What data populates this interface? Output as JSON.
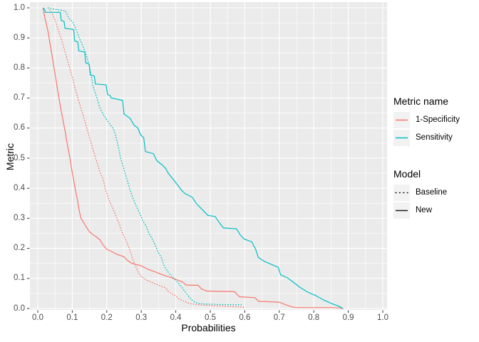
{
  "figure": {
    "background": "#FFFFFF",
    "panel_background": "#EBEBEB",
    "grid_color": "#FFFFFF",
    "tick_mark_color": "#333333",
    "tick_label_color": "#4D4D4D",
    "axis_title_color": "#000000"
  },
  "legend": {
    "color_group": {
      "title": "Metric name",
      "items": [
        {
          "label": "1-Specificity",
          "color": "#F8766D",
          "linetype": "solid"
        },
        {
          "label": "Sensitivity",
          "color": "#00BFC4",
          "linetype": "solid"
        }
      ]
    },
    "linetype_group": {
      "title": "Model",
      "items": [
        {
          "label": "Baseline",
          "color": "#1A1A1A",
          "linetype": "dotted"
        },
        {
          "label": "New",
          "color": "#1A1A1A",
          "linetype": "solid"
        }
      ]
    }
  },
  "chart_data": {
    "type": "line",
    "title": "",
    "xlabel": "Probabilities",
    "ylabel": "Metric",
    "xlim": [
      0,
      1
    ],
    "ylim": [
      0,
      1
    ],
    "grid": "major+minor",
    "legend_position": "right",
    "x_ticks": [
      "0.0",
      "0.1",
      "0.2",
      "0.3",
      "0.4",
      "0.5",
      "0.6",
      "0.7",
      "0.8",
      "0.9",
      "1.0"
    ],
    "y_ticks": [
      "0.0",
      "0.1",
      "0.2",
      "0.3",
      "0.4",
      "0.5",
      "0.6",
      "0.7",
      "0.8",
      "0.9",
      "1.0"
    ],
    "series": [
      {
        "name": "1-Specificity (New)",
        "metric": "1-Specificity",
        "model": "New",
        "color": "#F8766D",
        "linetype": "solid",
        "points": [
          [
            0.015,
            1.0
          ],
          [
            0.02,
            0.97
          ],
          [
            0.025,
            0.945
          ],
          [
            0.03,
            0.92
          ],
          [
            0.035,
            0.885
          ],
          [
            0.04,
            0.85
          ],
          [
            0.045,
            0.815
          ],
          [
            0.05,
            0.78
          ],
          [
            0.055,
            0.745
          ],
          [
            0.06,
            0.71
          ],
          [
            0.065,
            0.675
          ],
          [
            0.07,
            0.645
          ],
          [
            0.075,
            0.615
          ],
          [
            0.08,
            0.585
          ],
          [
            0.085,
            0.55
          ],
          [
            0.09,
            0.52
          ],
          [
            0.095,
            0.487
          ],
          [
            0.1,
            0.452
          ],
          [
            0.105,
            0.42
          ],
          [
            0.11,
            0.39
          ],
          [
            0.115,
            0.36
          ],
          [
            0.12,
            0.327
          ],
          [
            0.125,
            0.3
          ],
          [
            0.13,
            0.292
          ],
          [
            0.135,
            0.282
          ],
          [
            0.14,
            0.272
          ],
          [
            0.15,
            0.255
          ],
          [
            0.16,
            0.246
          ],
          [
            0.17,
            0.238
          ],
          [
            0.18,
            0.229
          ],
          [
            0.19,
            0.21
          ],
          [
            0.2,
            0.197
          ],
          [
            0.21,
            0.192
          ],
          [
            0.22,
            0.186
          ],
          [
            0.23,
            0.18
          ],
          [
            0.25,
            0.172
          ],
          [
            0.26,
            0.16
          ],
          [
            0.27,
            0.152
          ],
          [
            0.28,
            0.148
          ],
          [
            0.3,
            0.142
          ],
          [
            0.32,
            0.13
          ],
          [
            0.34,
            0.122
          ],
          [
            0.36,
            0.113
          ],
          [
            0.38,
            0.105
          ],
          [
            0.4,
            0.097
          ],
          [
            0.42,
            0.088
          ],
          [
            0.43,
            0.078
          ],
          [
            0.465,
            0.077
          ],
          [
            0.475,
            0.065
          ],
          [
            0.49,
            0.058
          ],
          [
            0.57,
            0.056
          ],
          [
            0.585,
            0.039
          ],
          [
            0.63,
            0.036
          ],
          [
            0.64,
            0.024
          ],
          [
            0.7,
            0.021
          ],
          [
            0.72,
            0.012
          ],
          [
            0.738,
            0.005
          ],
          [
            0.75,
            0.003
          ],
          [
            0.8,
            0.003
          ],
          [
            0.85,
            0.003
          ],
          [
            0.875,
            0.002
          ],
          [
            0.885,
            0.0
          ]
        ]
      },
      {
        "name": "1-Specificity (Baseline)",
        "metric": "1-Specificity",
        "model": "Baseline",
        "color": "#F8766D",
        "linetype": "dotted",
        "points": [
          [
            0.03,
            1.0
          ],
          [
            0.04,
            0.985
          ],
          [
            0.05,
            0.96
          ],
          [
            0.06,
            0.925
          ],
          [
            0.07,
            0.89
          ],
          [
            0.08,
            0.85
          ],
          [
            0.09,
            0.81
          ],
          [
            0.1,
            0.77
          ],
          [
            0.11,
            0.725
          ],
          [
            0.12,
            0.685
          ],
          [
            0.13,
            0.648
          ],
          [
            0.14,
            0.608
          ],
          [
            0.15,
            0.568
          ],
          [
            0.16,
            0.53
          ],
          [
            0.17,
            0.492
          ],
          [
            0.18,
            0.455
          ],
          [
            0.19,
            0.428
          ],
          [
            0.195,
            0.4
          ],
          [
            0.205,
            0.365
          ],
          [
            0.215,
            0.34
          ],
          [
            0.225,
            0.312
          ],
          [
            0.235,
            0.285
          ],
          [
            0.245,
            0.252
          ],
          [
            0.255,
            0.228
          ],
          [
            0.265,
            0.2
          ],
          [
            0.275,
            0.165
          ],
          [
            0.285,
            0.138
          ],
          [
            0.29,
            0.122
          ],
          [
            0.3,
            0.106
          ],
          [
            0.32,
            0.092
          ],
          [
            0.34,
            0.082
          ],
          [
            0.36,
            0.073
          ],
          [
            0.37,
            0.069
          ],
          [
            0.38,
            0.055
          ],
          [
            0.4,
            0.042
          ],
          [
            0.41,
            0.031
          ],
          [
            0.43,
            0.021
          ],
          [
            0.44,
            0.016
          ],
          [
            0.47,
            0.012
          ],
          [
            0.5,
            0.01
          ],
          [
            0.55,
            0.007
          ],
          [
            0.6,
            0.004
          ]
        ]
      },
      {
        "name": "Sensitivity (New)",
        "metric": "Sensitivity",
        "model": "New",
        "color": "#00BFC4",
        "linetype": "solid",
        "points": [
          [
            0.015,
            1.0
          ],
          [
            0.02,
            0.995
          ],
          [
            0.022,
            0.985
          ],
          [
            0.065,
            0.985
          ],
          [
            0.068,
            0.958
          ],
          [
            0.076,
            0.955
          ],
          [
            0.079,
            0.932
          ],
          [
            0.104,
            0.928
          ],
          [
            0.107,
            0.89
          ],
          [
            0.116,
            0.887
          ],
          [
            0.119,
            0.857
          ],
          [
            0.136,
            0.853
          ],
          [
            0.139,
            0.817
          ],
          [
            0.149,
            0.813
          ],
          [
            0.152,
            0.777
          ],
          [
            0.164,
            0.773
          ],
          [
            0.167,
            0.747
          ],
          [
            0.198,
            0.744
          ],
          [
            0.202,
            0.712
          ],
          [
            0.21,
            0.708
          ],
          [
            0.213,
            0.7
          ],
          [
            0.228,
            0.697
          ],
          [
            0.246,
            0.692
          ],
          [
            0.25,
            0.647
          ],
          [
            0.268,
            0.632
          ],
          [
            0.279,
            0.61
          ],
          [
            0.29,
            0.6
          ],
          [
            0.298,
            0.578
          ],
          [
            0.307,
            0.568
          ],
          [
            0.312,
            0.522
          ],
          [
            0.335,
            0.515
          ],
          [
            0.345,
            0.492
          ],
          [
            0.362,
            0.476
          ],
          [
            0.372,
            0.464
          ],
          [
            0.377,
            0.452
          ],
          [
            0.39,
            0.433
          ],
          [
            0.403,
            0.414
          ],
          [
            0.417,
            0.393
          ],
          [
            0.427,
            0.382
          ],
          [
            0.448,
            0.37
          ],
          [
            0.459,
            0.35
          ],
          [
            0.475,
            0.331
          ],
          [
            0.493,
            0.31
          ],
          [
            0.514,
            0.306
          ],
          [
            0.526,
            0.286
          ],
          [
            0.538,
            0.268
          ],
          [
            0.576,
            0.265
          ],
          [
            0.587,
            0.245
          ],
          [
            0.598,
            0.231
          ],
          [
            0.62,
            0.222
          ],
          [
            0.632,
            0.196
          ],
          [
            0.639,
            0.17
          ],
          [
            0.656,
            0.157
          ],
          [
            0.679,
            0.146
          ],
          [
            0.697,
            0.137
          ],
          [
            0.704,
            0.112
          ],
          [
            0.724,
            0.102
          ],
          [
            0.738,
            0.09
          ],
          [
            0.759,
            0.071
          ],
          [
            0.783,
            0.054
          ],
          [
            0.806,
            0.043
          ],
          [
            0.831,
            0.027
          ],
          [
            0.855,
            0.015
          ],
          [
            0.872,
            0.008
          ],
          [
            0.885,
            0.0
          ]
        ]
      },
      {
        "name": "Sensitivity (Baseline)",
        "metric": "Sensitivity",
        "model": "Baseline",
        "color": "#00BFC4",
        "linetype": "dotted",
        "points": [
          [
            0.03,
            1.0
          ],
          [
            0.05,
            0.995
          ],
          [
            0.08,
            0.99
          ],
          [
            0.09,
            0.965
          ],
          [
            0.1,
            0.955
          ],
          [
            0.11,
            0.932
          ],
          [
            0.12,
            0.9
          ],
          [
            0.13,
            0.875
          ],
          [
            0.14,
            0.845
          ],
          [
            0.15,
            0.805
          ],
          [
            0.155,
            0.775
          ],
          [
            0.16,
            0.74
          ],
          [
            0.17,
            0.705
          ],
          [
            0.18,
            0.668
          ],
          [
            0.19,
            0.645
          ],
          [
            0.2,
            0.628
          ],
          [
            0.21,
            0.612
          ],
          [
            0.22,
            0.595
          ],
          [
            0.228,
            0.565
          ],
          [
            0.235,
            0.53
          ],
          [
            0.24,
            0.5
          ],
          [
            0.247,
            0.475
          ],
          [
            0.253,
            0.45
          ],
          [
            0.258,
            0.432
          ],
          [
            0.266,
            0.4
          ],
          [
            0.275,
            0.37
          ],
          [
            0.285,
            0.342
          ],
          [
            0.295,
            0.318
          ],
          [
            0.305,
            0.29
          ],
          [
            0.315,
            0.272
          ],
          [
            0.322,
            0.25
          ],
          [
            0.33,
            0.235
          ],
          [
            0.34,
            0.212
          ],
          [
            0.35,
            0.185
          ],
          [
            0.357,
            0.172
          ],
          [
            0.368,
            0.138
          ],
          [
            0.38,
            0.118
          ],
          [
            0.386,
            0.11
          ],
          [
            0.403,
            0.09
          ],
          [
            0.417,
            0.071
          ],
          [
            0.431,
            0.05
          ],
          [
            0.444,
            0.031
          ],
          [
            0.455,
            0.021
          ],
          [
            0.465,
            0.017
          ],
          [
            0.48,
            0.015
          ],
          [
            0.51,
            0.014
          ],
          [
            0.54,
            0.013
          ],
          [
            0.57,
            0.0125
          ],
          [
            0.59,
            0.012
          ]
        ]
      }
    ]
  }
}
